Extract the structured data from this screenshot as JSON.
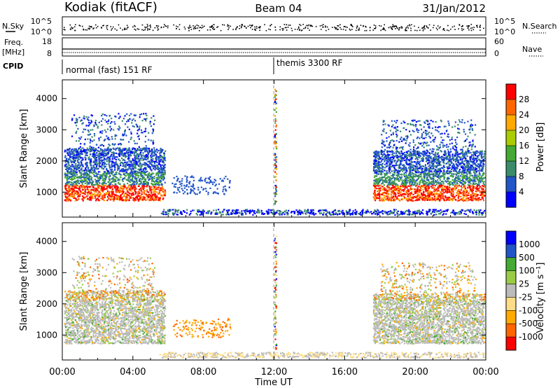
{
  "header": {
    "station": "Kodiak (fitACF)",
    "beam": "Beam 04",
    "date": "31/Jan/2012"
  },
  "side_labels": {
    "nsky": "N.Sky",
    "nsearch": "N.Search",
    "freq": "Freq.",
    "mhz": "[MHz]",
    "nave": "Nave",
    "cpid": "CPID"
  },
  "noise_panel": {
    "left_ticks": [
      "10^5",
      "10^0"
    ],
    "right_ticks": [
      "10^5",
      "10^0"
    ]
  },
  "freq_panel": {
    "left_ticks": [
      "18",
      "8"
    ],
    "right_ticks": [
      "60",
      "0"
    ]
  },
  "cpid_segments": [
    {
      "label": "normal (fast) 151 RF",
      "start_hour": 0
    },
    {
      "label": "themis 3300 RF",
      "start_hour": 12
    }
  ],
  "colors": {
    "power": [
      "#0000ff",
      "#2255c8",
      "#3a8c6a",
      "#44aa33",
      "#aacc00",
      "#ffaa00",
      "#ff6600",
      "#ff0000"
    ],
    "velocity": [
      "#ff0000",
      "#ff6600",
      "#ffaa00",
      "#ffdd88",
      "#bbbbbb",
      "#99cc44",
      "#44aa33",
      "#2255c8",
      "#0000ff"
    ]
  },
  "chart_data": [
    {
      "type": "heatmap",
      "name": "power",
      "xlabel": "",
      "ylabel": "Slant Range [km]",
      "xlim": [
        0,
        24
      ],
      "ylim": [
        200,
        4600
      ],
      "yticks": [
        "1000",
        "2000",
        "3000",
        "4000"
      ],
      "colorbar": {
        "label": "Power [dB]",
        "ticks": [
          "4",
          "8",
          "12",
          "16",
          "20",
          "24",
          "28"
        ]
      }
    },
    {
      "type": "heatmap",
      "name": "velocity",
      "xlabel": "Time UT",
      "ylabel": "Slant Range [km]",
      "xlim": [
        0,
        24
      ],
      "ylim": [
        200,
        4600
      ],
      "xticks": [
        "00:00",
        "04:00",
        "08:00",
        "12:00",
        "16:00",
        "20:00",
        "00:00"
      ],
      "yticks": [
        "1000",
        "2000",
        "3000",
        "4000"
      ],
      "colorbar": {
        "label": "Velocity [m s⁻¹]",
        "ticks": [
          "1000",
          "500",
          "100",
          "25",
          "-25",
          "-100",
          "-500",
          "-1000"
        ]
      }
    }
  ]
}
